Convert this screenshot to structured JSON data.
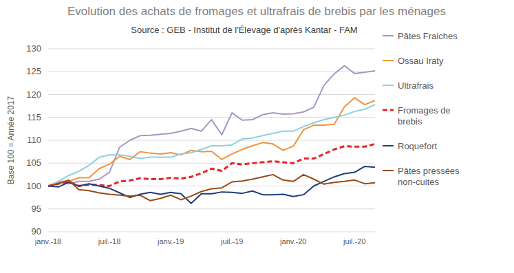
{
  "chart_data": {
    "type": "line",
    "title": "Evolution des achats de fromages et ultrafrais de brebis par les ménages",
    "subtitle": "Source : GEB - Institut de l'Élevage d'après Kantar - FAM",
    "y_label": "Base 100 = Année 2017",
    "categories": [
      "janv.-18",
      null,
      null,
      null,
      null,
      null,
      "juil.-18",
      null,
      null,
      null,
      null,
      null,
      "janv.-19",
      null,
      null,
      null,
      null,
      null,
      "juil.-19",
      null,
      null,
      null,
      null,
      null,
      "janv.-20",
      null,
      null,
      null,
      null,
      null,
      "juil.-20",
      null,
      null
    ],
    "ylim": [
      90,
      130
    ],
    "yticks": [
      90,
      95,
      100,
      105,
      110,
      115,
      120,
      125,
      130
    ],
    "grid": true,
    "legend": "right",
    "series": [
      {
        "name": "Pâtes Fraiches",
        "color": "#a896c4",
        "line_style": "solid",
        "values": [
          100,
          100.8,
          100.5,
          101,
          101,
          101.5,
          103,
          108.5,
          110,
          111,
          111.1,
          111.3,
          111.5,
          112,
          112.6,
          112,
          114.5,
          111.2,
          116,
          114.4,
          114.5,
          115.6,
          116,
          115.7,
          115.8,
          116.2,
          117.2,
          122,
          124.5,
          126.3,
          124.6,
          124.9,
          125.2
        ]
      },
      {
        "name": "Ossau Iraty",
        "color": "#f0943a",
        "line_style": "solid",
        "values": [
          100,
          101,
          101,
          101.8,
          101.8,
          103.8,
          104.8,
          106.5,
          105.8,
          107.5,
          107.2,
          107,
          107.3,
          106.8,
          107.8,
          107.5,
          107.6,
          105.8,
          107,
          108,
          108.8,
          109.5,
          109.2,
          107.8,
          108.7,
          112.3,
          113.3,
          113.3,
          113.5,
          117.3,
          119.3,
          117.8,
          118.7
        ]
      },
      {
        "name": "Ultrafrais",
        "color": "#8fcfdc",
        "line_style": "solid",
        "values": [
          100,
          101,
          102.3,
          103.2,
          104.5,
          106.3,
          106.8,
          106.8,
          106.5,
          106,
          106.3,
          106.3,
          106.3,
          107,
          107.3,
          108,
          108.8,
          108.8,
          109,
          110.3,
          110.5,
          111,
          111.5,
          112,
          112,
          113,
          113.8,
          114.5,
          115,
          115.5,
          116.3,
          116.8,
          117.8
        ]
      },
      {
        "name": "Fromages de brebis",
        "color": "#e8242a",
        "line_style": "dashed",
        "values": [
          100,
          100.5,
          101,
          100,
          100.3,
          100.2,
          100,
          101,
          101.2,
          101.7,
          101.5,
          101.5,
          101.8,
          101.6,
          102,
          102.8,
          103.8,
          103.3,
          105,
          104.7,
          105,
          105.2,
          105.4,
          105.2,
          105,
          106,
          106,
          107,
          108,
          108.7,
          108.6,
          108.6,
          109.2
        ]
      },
      {
        "name": "Roquefort",
        "color": "#1f3d7a",
        "line_style": "solid",
        "values": [
          100,
          99.8,
          100.8,
          100,
          100.5,
          100,
          99.5,
          98.5,
          97.5,
          98.2,
          98.6,
          98.2,
          98.6,
          98.3,
          96.2,
          98.3,
          98.3,
          98.7,
          98.6,
          98.4,
          98.9,
          98.1,
          98.1,
          98.2,
          97.7,
          98.1,
          100,
          101,
          102,
          102.7,
          103,
          104.3,
          104.1
        ]
      },
      {
        "name": "Pâtes pressées non-cuites",
        "color": "#9b4a12",
        "line_style": "solid",
        "values": [
          100,
          100.5,
          101.3,
          99.2,
          99,
          98.5,
          98.2,
          98,
          97.8,
          98,
          96.8,
          97.3,
          98,
          97,
          97.8,
          98.8,
          99.4,
          99.6,
          100.9,
          101.1,
          101.5,
          102,
          102.5,
          101.3,
          101,
          102.5,
          101.5,
          100.4,
          100.8,
          101,
          101.3,
          100.5,
          100.7
        ]
      }
    ]
  }
}
